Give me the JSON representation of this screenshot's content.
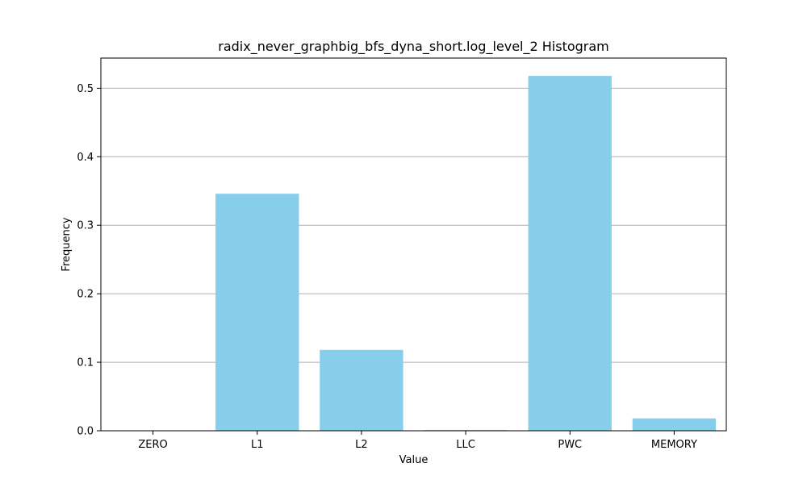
{
  "chart_data": {
    "type": "bar",
    "title": "radix_never_graphbig_bfs_dyna_short.log_level_2 Histogram",
    "xlabel": "Value",
    "ylabel": "Frequency",
    "categories": [
      "ZERO",
      "L1",
      "L2",
      "LLC",
      "PWC",
      "MEMORY"
    ],
    "values": [
      0.0,
      0.346,
      0.118,
      0.001,
      0.518,
      0.018
    ],
    "ylim": [
      0,
      0.544
    ],
    "yticks": [
      0.0,
      0.1,
      0.2,
      0.3,
      0.4,
      0.5
    ],
    "ytick_labels": [
      "0.0",
      "0.1",
      "0.2",
      "0.3",
      "0.4",
      "0.5"
    ],
    "grid": "y",
    "legend": "none",
    "colors": {
      "bar": "#87ceeb",
      "grid": "#b0b0b0",
      "axis": "#000000"
    }
  }
}
